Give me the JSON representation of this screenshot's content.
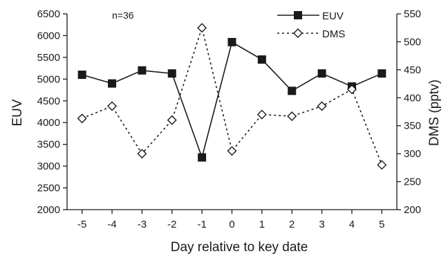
{
  "chart_data": {
    "type": "line",
    "title": "",
    "annotation": "n=36",
    "xlabel": "Day relative to key date",
    "y_left_label": "EUV",
    "y_right_label": "DMS (pptv)",
    "x": [
      -5,
      -4,
      -3,
      -2,
      -1,
      0,
      1,
      2,
      3,
      4,
      5
    ],
    "x_tick_labels": [
      "-5",
      "-4",
      "-3",
      "-2",
      "-1",
      "0",
      "1",
      "2",
      "3",
      "4",
      "5"
    ],
    "y_left_lim": [
      2000,
      6500
    ],
    "y_left_ticks": [
      2000,
      2500,
      3000,
      3500,
      4000,
      4500,
      5000,
      5500,
      6000,
      6500
    ],
    "y_left_tick_labels": [
      "2000",
      "2500",
      "3000",
      "3500",
      "4000",
      "4500",
      "5000",
      "5500",
      "6000",
      "6500"
    ],
    "y_right_lim": [
      200,
      550
    ],
    "y_right_ticks": [
      200,
      250,
      300,
      350,
      400,
      450,
      500,
      550
    ],
    "y_right_tick_labels": [
      "200",
      "250",
      "300",
      "350",
      "400",
      "450",
      "500",
      "550"
    ],
    "series": [
      {
        "name": "EUV",
        "axis": "left",
        "values": [
          5100,
          4900,
          5200,
          5130,
          3200,
          5850,
          5450,
          4730,
          5130,
          4830,
          5130
        ],
        "marker": "filled-square",
        "line": "solid",
        "color": "#1a1a1a"
      },
      {
        "name": "DMS",
        "axis": "right",
        "values": [
          363,
          385,
          300,
          360,
          525,
          305,
          370,
          367,
          385,
          415,
          280
        ],
        "marker": "open-diamond",
        "line": "dotted",
        "color": "#1a1a1a"
      }
    ],
    "legend_position": "top-right",
    "grid": false
  }
}
